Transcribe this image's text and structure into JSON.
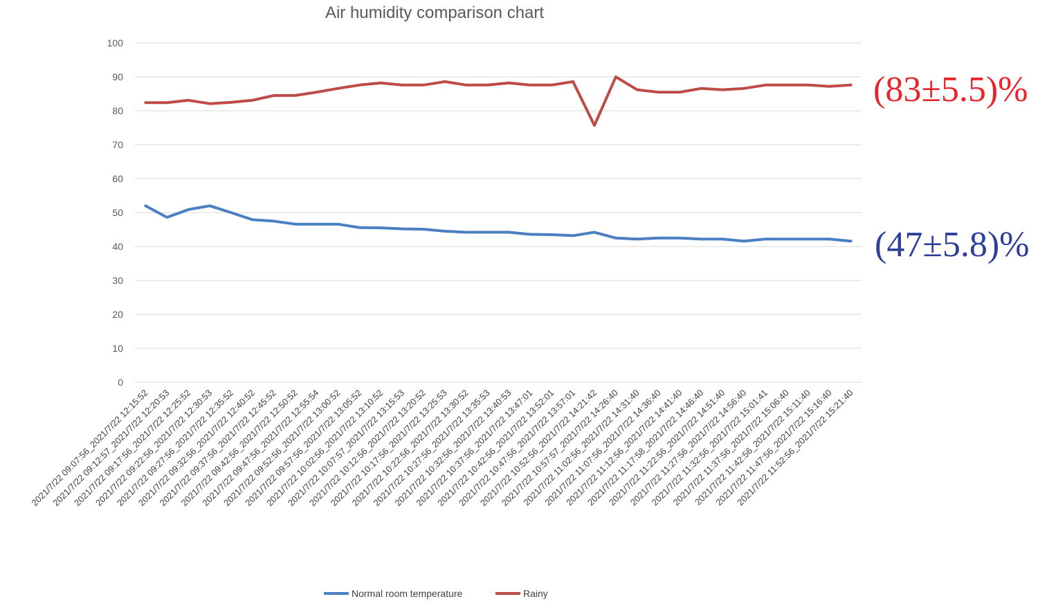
{
  "chart_data": {
    "type": "line",
    "title": "Air humidity comparison chart",
    "xlabel": "",
    "ylabel": "",
    "ylim": [
      0,
      100
    ],
    "yticks": [
      0,
      10,
      20,
      30,
      40,
      50,
      60,
      70,
      80,
      90,
      100
    ],
    "grid": "horizontal",
    "legend_position": "bottom",
    "categories": [
      "2021/7/22 09:07:56_2021/7/22 12:15:52",
      "2021/7/22 09:12:57_2021/7/22 12:20:53",
      "2021/7/22 09:17:56_2021/7/22 12:25:52",
      "2021/7/22 09:22:56_2021/7/22 12:30:53",
      "2021/7/22 09:27:56_2021/7/22 12:35:52",
      "2021/7/22 09:32:56_2021/7/22 12:40:52",
      "2021/7/22 09:37:56_2021/7/22 12:45:52",
      "2021/7/22 09:42:56_2021/7/22 12:50:52",
      "2021/7/22 09:47:56_2021/7/22 12:55:54",
      "2021/7/22 09:52:56_2021/7/22 13:00:52",
      "2021/7/22 09:57:56_2021/7/22 13:05:52",
      "2021/7/22 10:02:56_2021/7/22 13:10:52",
      "2021/7/22 10:07:57_2021/7/22 13:15:53",
      "2021/7/22 10:12:56_2021/7/22 13:20:52",
      "2021/7/22 10:17:56_2021/7/22 13:25:53",
      "2021/7/22 10:22:56_2021/7/22 13:30:52",
      "2021/7/22 10:27:56_2021/7/22 13:35:53",
      "2021/7/22 10:32:56_2021/7/22 13:40:53",
      "2021/7/22 10:37:56_2021/7/22 13:47:01",
      "2021/7/22 10:42:56_2021/7/22 13:52:01",
      "2021/7/22 10:47:56_2021/7/22 13:57:01",
      "2021/7/22 10:52:56_2021/7/22 14:21:42",
      "2021/7/22 10:57:57_2021/7/22 14:26:40",
      "2021/7/22 11:02:56_2021/7/22 14:31:40",
      "2021/7/22 11:07:56_2021/7/22 14:36:40",
      "2021/7/22 11:12:56_2021/7/22 14:41:40",
      "2021/7/22 11:17:58_2021/7/22 14:46:40",
      "2021/7/22 11:22:56_2021/7/22 14:51:40",
      "2021/7/22 11:27:56_2021/7/22 14:56:40",
      "2021/7/22 11:32:56_2021/7/22 15:01:41",
      "2021/7/22 11:37:56_2021/7/22 15:06:40",
      "2021/7/22 11:42:56_2021/7/22 15:11:40",
      "2021/7/22 11:47:56_2021/7/22 15:16:40",
      "2021/7/22 11:52:56_2021/7/22 15:21:40"
    ],
    "series": [
      {
        "name": "Normal room temperature",
        "color": "#4A7FC1",
        "values": [
          52.0,
          48.6,
          50.9,
          52.0,
          50.0,
          47.9,
          47.5,
          46.6,
          46.6,
          46.6,
          45.6,
          45.5,
          45.2,
          45.1,
          44.5,
          44.2,
          44.2,
          44.2,
          43.6,
          43.5,
          43.2,
          44.2,
          42.5,
          42.2,
          42.5,
          42.5,
          42.2,
          42.2,
          41.6,
          42.2,
          42.2,
          42.2,
          42.2,
          41.6
        ]
      },
      {
        "name": "Rainy",
        "color": "#BE4B48",
        "values": [
          82.4,
          82.4,
          83.1,
          82.1,
          82.5,
          83.1,
          84.5,
          84.5,
          85.5,
          86.6,
          87.6,
          88.2,
          87.6,
          87.6,
          88.6,
          87.6,
          87.6,
          88.2,
          87.6,
          87.6,
          88.6,
          75.7,
          90.0,
          86.2,
          85.5,
          85.5,
          86.6,
          86.2,
          86.6,
          87.6,
          87.6,
          87.6,
          87.2,
          87.6
        ]
      }
    ],
    "annotations": [
      {
        "text": "(83±5.5)%",
        "color": "#E8252A"
      },
      {
        "text": "(47±5.8)%",
        "color": "#2E3F9A"
      }
    ]
  }
}
